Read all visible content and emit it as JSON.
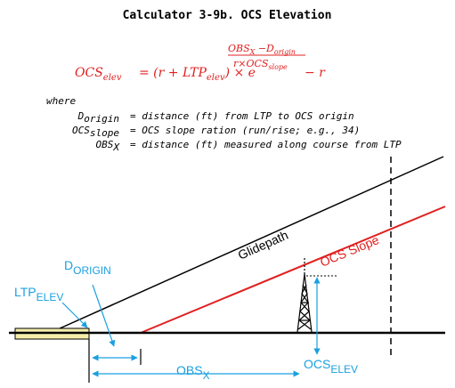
{
  "title": "Calculator 3-9b. OCS Elevation",
  "formula": {
    "lhs_main": "OCS",
    "lhs_sub": "elev",
    "rhs_open": "= (r + LTP",
    "rhs_sub": "elev",
    "rhs_close": ") × e",
    "exp_num_main": "OBS",
    "exp_num_sub1": "X",
    "exp_num_minus": " −D",
    "exp_num_sub2": "origin",
    "exp_den_main": "r×OCS",
    "exp_den_sub": "slope",
    "tail": "− r",
    "color": "#e02020"
  },
  "where": {
    "label": "where",
    "items": [
      {
        "main": "D",
        "sub": "origin",
        "desc": "= distance (ft) from LTP to OCS origin"
      },
      {
        "main": "OCS",
        "sub": "slope",
        "desc": "= OCS slope ration (run/rise; e.g., 34)"
      },
      {
        "main": "OBS",
        "sub": "X",
        "desc": "= distance (ft) measured along course from LTP"
      }
    ]
  },
  "diagram": {
    "glidepath_label": "Glidepath",
    "ocs_slope_label": "OCS Slope",
    "ocs_color": "#e02020",
    "ltp_main": "LTP",
    "ltp_sub": "ELEV",
    "dorigin_main": "D",
    "dorigin_sub": "ORIGIN",
    "obsx_main": "OBS",
    "obsx_sub": "X",
    "ocselev_main": "OCS",
    "ocselev_sub": "ELEV",
    "annotation_color": "#1ba0e0",
    "runway_color": "#f4eeaa"
  }
}
